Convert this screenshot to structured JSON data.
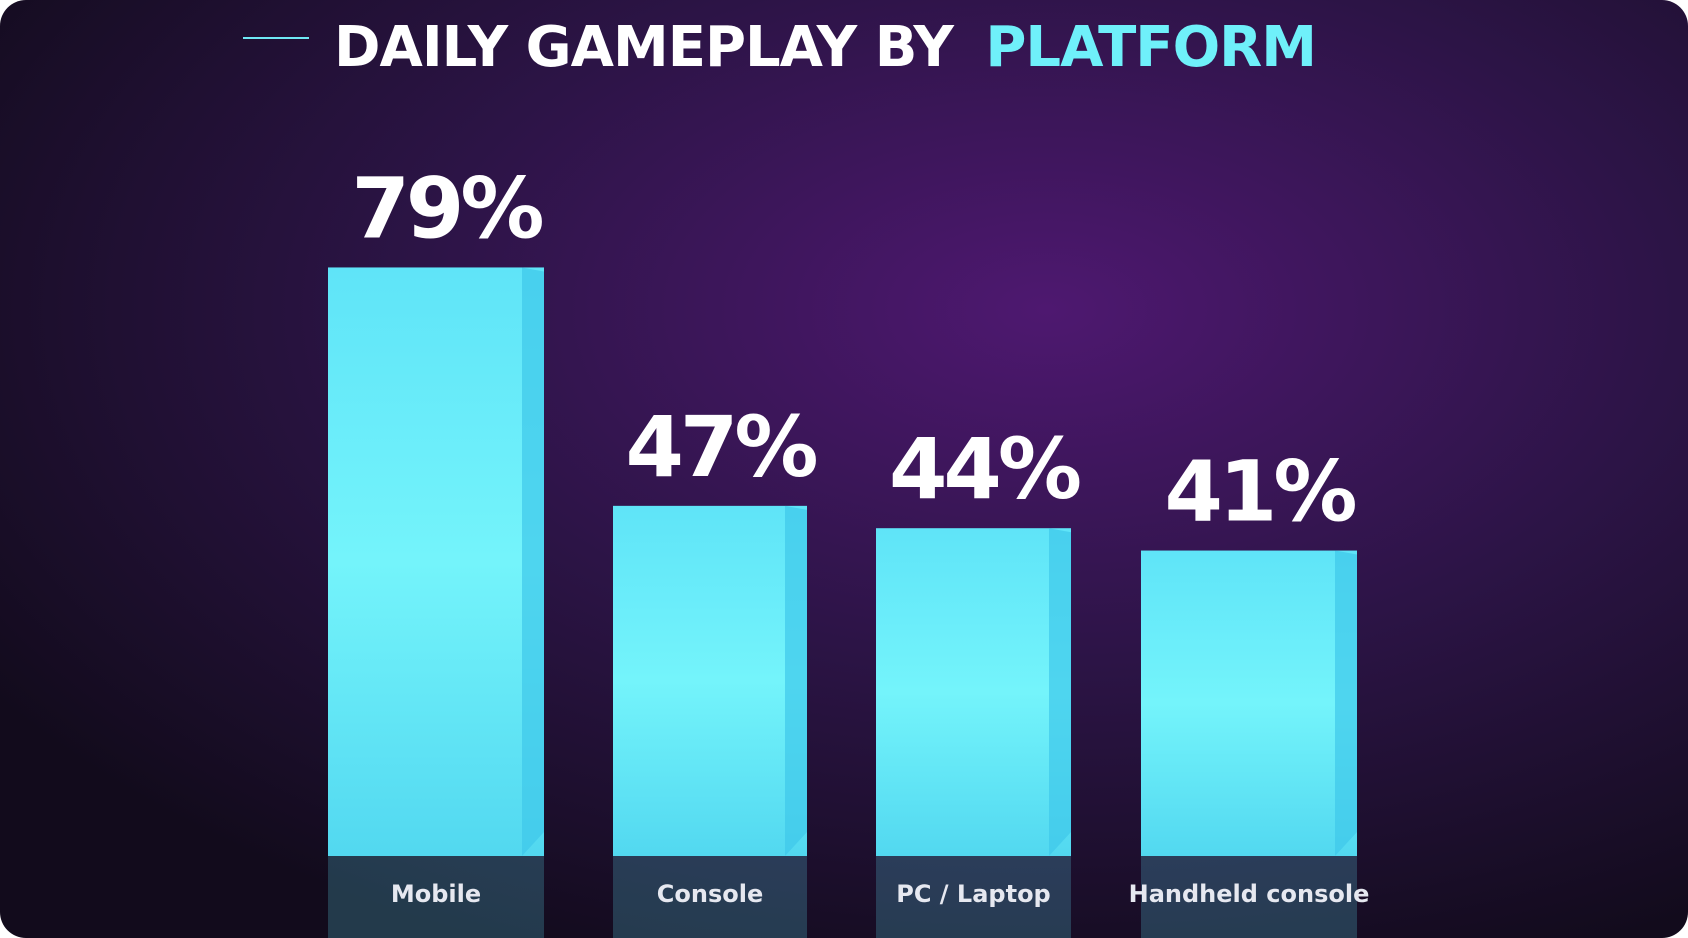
{
  "chart_data": {
    "type": "bar",
    "title": "DAILY GAMEPLAY BY",
    "title_highlight": "PLATFORM",
    "categories": [
      "Mobile",
      "Console",
      "PC / Laptop",
      "Handheld console"
    ],
    "values": [
      79,
      47,
      44,
      41
    ],
    "value_labels": [
      "79%",
      "47%",
      "44%",
      "41%"
    ],
    "color": "#6ff0fa"
  }
}
